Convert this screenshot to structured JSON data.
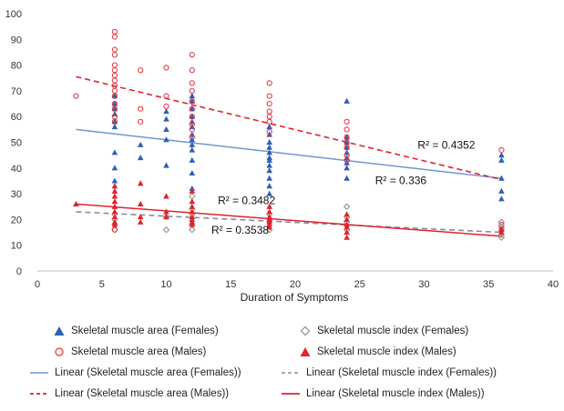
{
  "chart_data": {
    "type": "scatter",
    "xlabel": "Duration of Symptoms",
    "ylabel": "",
    "xlim": [
      0,
      40
    ],
    "ylim": [
      0,
      100
    ],
    "x_ticks": [
      "0",
      "5",
      "10",
      "15",
      "20",
      "25",
      "30",
      "35",
      "40"
    ],
    "y_ticks": [
      "0",
      "10",
      "20",
      "30",
      "40",
      "50",
      "60",
      "70",
      "80",
      "90",
      "100"
    ],
    "grid": false,
    "legend_position": "bottom",
    "series": [
      {
        "name": "Skeletal muscle area (Females)",
        "color": "#2f5fb5",
        "marker": "triangle-filled",
        "points": [
          [
            6,
            46
          ],
          [
            6,
            40
          ],
          [
            6,
            58
          ],
          [
            6,
            61
          ],
          [
            6,
            63
          ],
          [
            6,
            65
          ],
          [
            6,
            68
          ],
          [
            6,
            56
          ],
          [
            6,
            35
          ],
          [
            8,
            49
          ],
          [
            8,
            44
          ],
          [
            10,
            59
          ],
          [
            10,
            55
          ],
          [
            10,
            51
          ],
          [
            10,
            41
          ],
          [
            10,
            62
          ],
          [
            12,
            47
          ],
          [
            12,
            49
          ],
          [
            12,
            51
          ],
          [
            12,
            53
          ],
          [
            12,
            56
          ],
          [
            12,
            58
          ],
          [
            12,
            60
          ],
          [
            12,
            63
          ],
          [
            12,
            66
          ],
          [
            12,
            68
          ],
          [
            12,
            43
          ],
          [
            12,
            38
          ],
          [
            12,
            32
          ],
          [
            18,
            36
          ],
          [
            18,
            39
          ],
          [
            18,
            41
          ],
          [
            18,
            43
          ],
          [
            18,
            44
          ],
          [
            18,
            46
          ],
          [
            18,
            48
          ],
          [
            18,
            50
          ],
          [
            18,
            53
          ],
          [
            18,
            56
          ],
          [
            18,
            33
          ],
          [
            18,
            30
          ],
          [
            24,
            36
          ],
          [
            24,
            40
          ],
          [
            24,
            42
          ],
          [
            24,
            44
          ],
          [
            24,
            46
          ],
          [
            24,
            48
          ],
          [
            24,
            50
          ],
          [
            24,
            52
          ],
          [
            24,
            66
          ],
          [
            36,
            45
          ],
          [
            36,
            43
          ],
          [
            36,
            31
          ],
          [
            36,
            28
          ],
          [
            36,
            36
          ]
        ]
      },
      {
        "name": "Skeletal muscle index (Females)",
        "color": "#8c8c8c",
        "marker": "diamond-open",
        "points": [
          [
            6,
            16
          ],
          [
            6,
            18
          ],
          [
            6,
            22
          ],
          [
            6,
            20
          ],
          [
            10,
            16
          ],
          [
            10,
            21
          ],
          [
            12,
            16
          ],
          [
            12,
            18
          ],
          [
            12,
            22
          ],
          [
            12,
            24
          ],
          [
            12,
            29
          ],
          [
            18,
            16
          ],
          [
            18,
            19
          ],
          [
            18,
            20
          ],
          [
            18,
            22
          ],
          [
            24,
            16
          ],
          [
            24,
            19
          ],
          [
            24,
            21
          ],
          [
            24,
            25
          ],
          [
            36,
            14
          ],
          [
            36,
            13
          ],
          [
            36,
            17
          ],
          [
            36,
            19
          ]
        ]
      },
      {
        "name": "Skeletal muscle area (Males)",
        "color": "#e0303a",
        "marker": "circle-open",
        "points": [
          [
            3,
            68
          ],
          [
            6,
            93
          ],
          [
            6,
            91
          ],
          [
            6,
            86
          ],
          [
            6,
            84
          ],
          [
            6,
            80
          ],
          [
            6,
            78
          ],
          [
            6,
            76
          ],
          [
            6,
            74
          ],
          [
            6,
            72
          ],
          [
            6,
            70
          ],
          [
            6,
            68
          ],
          [
            6,
            65
          ],
          [
            6,
            63
          ],
          [
            6,
            60
          ],
          [
            6,
            58
          ],
          [
            6,
            16
          ],
          [
            8,
            78
          ],
          [
            8,
            63
          ],
          [
            8,
            58
          ],
          [
            10,
            79
          ],
          [
            10,
            68
          ],
          [
            10,
            64
          ],
          [
            12,
            84
          ],
          [
            12,
            78
          ],
          [
            12,
            73
          ],
          [
            12,
            70
          ],
          [
            12,
            66
          ],
          [
            12,
            63
          ],
          [
            12,
            60
          ],
          [
            12,
            57
          ],
          [
            12,
            55
          ],
          [
            12,
            52
          ],
          [
            18,
            73
          ],
          [
            18,
            68
          ],
          [
            18,
            65
          ],
          [
            18,
            62
          ],
          [
            18,
            60
          ],
          [
            18,
            58
          ],
          [
            18,
            54
          ],
          [
            24,
            58
          ],
          [
            24,
            55
          ],
          [
            24,
            52
          ],
          [
            24,
            50
          ],
          [
            24,
            48
          ],
          [
            24,
            45
          ],
          [
            24,
            43
          ],
          [
            36,
            47
          ],
          [
            36,
            18
          ],
          [
            36,
            16
          ]
        ]
      },
      {
        "name": "Skeletal muscle index (Males)",
        "color": "#e0232b",
        "marker": "triangle-filled",
        "points": [
          [
            3,
            26
          ],
          [
            6,
            33
          ],
          [
            6,
            31
          ],
          [
            6,
            29
          ],
          [
            6,
            27
          ],
          [
            6,
            25
          ],
          [
            6,
            23
          ],
          [
            6,
            21
          ],
          [
            6,
            19
          ],
          [
            6,
            18
          ],
          [
            8,
            34
          ],
          [
            8,
            26
          ],
          [
            8,
            21
          ],
          [
            8,
            19
          ],
          [
            10,
            29
          ],
          [
            10,
            23
          ],
          [
            10,
            21
          ],
          [
            12,
            31
          ],
          [
            12,
            27
          ],
          [
            12,
            25
          ],
          [
            12,
            23
          ],
          [
            12,
            21
          ],
          [
            12,
            20
          ],
          [
            12,
            19
          ],
          [
            12,
            18
          ],
          [
            18,
            25
          ],
          [
            18,
            23
          ],
          [
            18,
            21
          ],
          [
            18,
            20
          ],
          [
            18,
            19
          ],
          [
            18,
            18
          ],
          [
            18,
            17
          ],
          [
            24,
            22
          ],
          [
            24,
            20
          ],
          [
            24,
            18
          ],
          [
            24,
            17
          ],
          [
            24,
            15
          ],
          [
            24,
            13
          ],
          [
            36,
            16
          ],
          [
            36,
            15
          ]
        ]
      }
    ],
    "trendlines": [
      {
        "name": "Linear (Skeletal muscle area (Females))",
        "color": "#6f97d1",
        "dash": "solid",
        "x": [
          3,
          36
        ],
        "y": [
          55,
          36
        ]
      },
      {
        "name": "Linear (Skeletal muscle index (Females))",
        "color": "#8a8aa6",
        "dash": "dashed",
        "x": [
          3,
          36
        ],
        "y": [
          23,
          15
        ]
      },
      {
        "name": "Linear (Skeletal muscle area (Males))",
        "color": "#e0232b",
        "dash": "dashed",
        "x": [
          3,
          36
        ],
        "y": [
          75.5,
          35.5
        ]
      },
      {
        "name": "Linear (Skeletal muscle index (Males))",
        "color": "#e0232b",
        "dash": "solid",
        "x": [
          3,
          36
        ],
        "y": [
          26,
          13.5
        ]
      }
    ],
    "annotations": [
      {
        "text": "R² = 0.4352",
        "x": 29.5,
        "y": 47.5
      },
      {
        "text": "R² = 0.336",
        "x": 26.2,
        "y": 33.7
      },
      {
        "text": "R² = 0.3482",
        "x": 14,
        "y": 26
      },
      {
        "text": "R² = 0.3538",
        "x": 13.5,
        "y": 14.5
      }
    ]
  },
  "legend": [
    {
      "label": "Skeletal muscle area (Females)",
      "kind": "triangle",
      "color": "#2f5fb5"
    },
    {
      "label": "Skeletal muscle index (Females)",
      "kind": "diamond",
      "color": "#8c8c8c"
    },
    {
      "label": "Skeletal muscle area (Males)",
      "kind": "circle",
      "color": "#e0303a"
    },
    {
      "label": "Skeletal muscle index (Males)",
      "kind": "triangle",
      "color": "#e0232b"
    },
    {
      "label": "Linear (Skeletal muscle area (Females))",
      "kind": "line-solid",
      "color": "#6f97d1"
    },
    {
      "label": "Linear (Skeletal muscle index (Females))",
      "kind": "line-dashed",
      "color": "#8a8aa6"
    },
    {
      "label": "Linear (Skeletal muscle area (Males))",
      "kind": "line-dashed",
      "color": "#e0232b"
    },
    {
      "label": "Linear (Skeletal muscle index (Males))",
      "kind": "line-solid",
      "color": "#e0232b"
    }
  ]
}
